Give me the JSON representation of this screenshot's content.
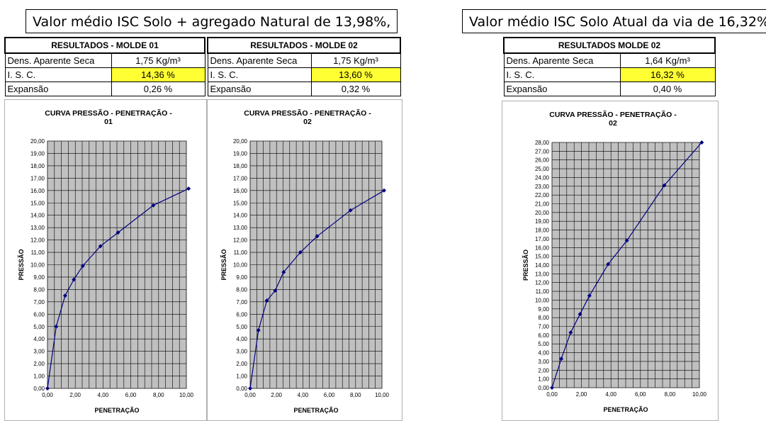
{
  "captions": {
    "left": "Valor médio ISC Solo + agregado Natural de 13,98%,",
    "right": "Valor médio ISC Solo Atual da via de 16,32%,"
  },
  "tables": [
    {
      "header": "RESULTADOS - MOLDE 01",
      "rows": [
        {
          "label": "Dens. Aparente Seca",
          "value": "1,75 Kg/m³"
        },
        {
          "label": "I. S. C.",
          "value": "14,36 %"
        },
        {
          "label": "Expansão",
          "value": "0,26 %"
        }
      ]
    },
    {
      "header": "RESULTADOS - MOLDE 02",
      "rows": [
        {
          "label": "Dens. Aparente Seca",
          "value": "1,75 Kg/m³"
        },
        {
          "label": "I. S. C.",
          "value": "13,60 %"
        },
        {
          "label": "Expansão",
          "value": "0,32 %"
        }
      ]
    },
    {
      "header": "RESULTADOS MOLDE 02",
      "rows": [
        {
          "label": "Dens. Aparente Seca",
          "value": "1,64 Kg/m³"
        },
        {
          "label": "I. S. C.",
          "value": "16,32 %"
        },
        {
          "label": "Expansão",
          "value": "0,40 %"
        }
      ]
    }
  ],
  "colors": {
    "highlight": "#ffff33",
    "plot_bg": "#c0c0c0",
    "series": "#000080"
  },
  "chart_data": [
    {
      "type": "line",
      "title_lines": [
        "CURVA PRESSÃO - PENETRAÇÃO -",
        "01"
      ],
      "xlabel": "PENETRAÇÃO",
      "ylabel": "PRESSÃO",
      "xlim": [
        0,
        10
      ],
      "ylim": [
        0,
        20
      ],
      "xticks": [
        "0,00",
        "2,00",
        "4,00",
        "6,00",
        "8,00",
        "10,00"
      ],
      "yticks": [
        "0,00",
        "1,00",
        "2,00",
        "3,00",
        "4,00",
        "5,00",
        "6,00",
        "7,00",
        "8,00",
        "9,00",
        "10,00",
        "11,00",
        "12,00",
        "13,00",
        "14,00",
        "15,00",
        "16,00",
        "17,00",
        "18,00",
        "19,00",
        "20,00"
      ],
      "grid": true,
      "x": [
        0,
        0.63,
        1.27,
        1.9,
        2.54,
        3.81,
        5.08,
        7.62,
        10.16
      ],
      "y": [
        0,
        5.0,
        7.5,
        8.8,
        9.9,
        11.5,
        12.6,
        14.8,
        16.15
      ]
    },
    {
      "type": "line",
      "title_lines": [
        "CURVA PRESSÃO - PENETRAÇÃO -",
        "02"
      ],
      "xlabel": "PENETRAÇÃO",
      "ylabel": "PRESSÃO",
      "xlim": [
        0,
        10
      ],
      "ylim": [
        0,
        20
      ],
      "xticks": [
        "0,00",
        "2,00",
        "4,00",
        "6,00",
        "8,00",
        "10,00"
      ],
      "yticks": [
        "0,00",
        "1,00",
        "2,00",
        "3,00",
        "4,00",
        "5,00",
        "6,00",
        "7,00",
        "8,00",
        "9,00",
        "10,00",
        "11,00",
        "12,00",
        "13,00",
        "14,00",
        "15,00",
        "16,00",
        "17,00",
        "18,00",
        "19,00",
        "20,00"
      ],
      "grid": true,
      "x": [
        0,
        0.63,
        1.27,
        1.9,
        2.54,
        3.81,
        5.08,
        7.62,
        10.16
      ],
      "y": [
        0,
        4.7,
        7.1,
        7.9,
        9.4,
        11.0,
        12.3,
        14.4,
        16.0
      ]
    },
    {
      "type": "line",
      "title_lines": [
        "CURVA PRESSÃO - PENETRAÇÃO -",
        "02"
      ],
      "xlabel": "PENETRAÇÃO",
      "ylabel": "PRESSÃO",
      "xlim": [
        0,
        10
      ],
      "ylim": [
        0,
        28
      ],
      "xticks": [
        "0,00",
        "2,00",
        "4,00",
        "6,00",
        "8,00",
        "10,00"
      ],
      "yticks": [
        "0,00",
        "1,00",
        "2,00",
        "3,00",
        "4,00",
        "5,00",
        "6,00",
        "7,00",
        "8,00",
        "9,00",
        "10,00",
        "11,00",
        "12,00",
        "13,00",
        "14,00",
        "15,00",
        "16,00",
        "17,00",
        "18,00",
        "19,00",
        "20,00",
        "21,00",
        "22,00",
        "23,00",
        "24,00",
        "25,00",
        "26,00",
        "27,00",
        "28,00"
      ],
      "grid": true,
      "x": [
        0,
        0.63,
        1.27,
        1.9,
        2.54,
        3.81,
        5.08,
        7.62,
        10.16
      ],
      "y": [
        0,
        3.3,
        6.3,
        8.4,
        10.5,
        14.1,
        16.8,
        23.1,
        28.0
      ]
    }
  ]
}
